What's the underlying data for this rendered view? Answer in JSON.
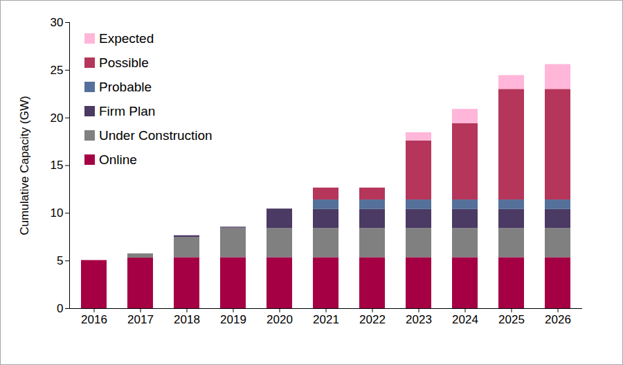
{
  "chart_data": {
    "type": "bar",
    "stacked": true,
    "y_label": "Cumulative Capacity (GW)",
    "categories": [
      "2016",
      "2017",
      "2018",
      "2019",
      "2020",
      "2021",
      "2022",
      "2023",
      "2024",
      "2025",
      "2026"
    ],
    "series": [
      {
        "name": "Online",
        "color": "#a50044",
        "values": [
          5.05,
          5.3,
          5.35,
          5.35,
          5.35,
          5.35,
          5.35,
          5.35,
          5.35,
          5.35,
          5.35
        ]
      },
      {
        "name": "Under Construction",
        "color": "#808080",
        "values": [
          0,
          0.45,
          2.1,
          3.1,
          3.05,
          3.05,
          3.05,
          3.05,
          3.05,
          3.05,
          3.05
        ]
      },
      {
        "name": "Firm Plan",
        "color": "#4b3a63",
        "values": [
          0,
          0,
          0.2,
          0.1,
          2.05,
          2.0,
          2.0,
          2.0,
          2.0,
          2.0,
          2.0
        ]
      },
      {
        "name": "Probable",
        "color": "#55709a",
        "values": [
          0,
          0,
          0,
          0,
          0,
          1.0,
          1.0,
          1.0,
          1.0,
          1.0,
          1.0
        ]
      },
      {
        "name": "Possible",
        "color": "#b5365a",
        "values": [
          0,
          0,
          0,
          0,
          0,
          1.25,
          1.25,
          6.2,
          8.0,
          11.6,
          11.6
        ]
      },
      {
        "name": "Expected",
        "color": "#ffb6d9",
        "values": [
          0,
          0,
          0,
          0,
          0,
          0,
          0,
          0.85,
          1.5,
          1.45,
          2.6
        ]
      }
    ],
    "ylim": [
      0,
      30
    ],
    "yticks": [
      0,
      5,
      10,
      15,
      20,
      25,
      30
    ],
    "grid": false,
    "legend": "top-left"
  }
}
